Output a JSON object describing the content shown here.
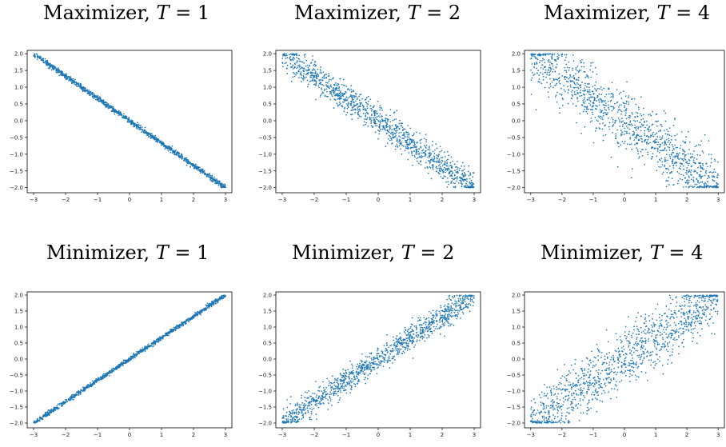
{
  "style": {
    "point_color": "#1f77b4",
    "axis_color": "#000000",
    "background": "#ffffff"
  },
  "chart_data": [
    {
      "type": "scatter",
      "title": {
        "prefix": "Maximizer, ",
        "var": "T",
        "eq": " = 1"
      },
      "relation": "negative",
      "noise_level": 0.04,
      "n_points": 1200,
      "xlim": [
        -3.2,
        3.2
      ],
      "ylim": [
        -2.15,
        2.1
      ],
      "xticks": [
        -3,
        -2,
        -1,
        0,
        1,
        2,
        3
      ],
      "xtick_labels": [
        "−3",
        "−2",
        "−1",
        "0",
        "1",
        "2",
        "3"
      ],
      "yticks": [
        -2.0,
        -1.5,
        -1.0,
        -0.5,
        0.0,
        0.5,
        1.0,
        1.5,
        2.0
      ],
      "ytick_labels": [
        "−2.0",
        "−1.5",
        "−1.0",
        "−0.5",
        "0.0",
        "0.5",
        "1.0",
        "1.5",
        "2.0"
      ],
      "grid": false
    },
    {
      "type": "scatter",
      "title": {
        "prefix": "Maximizer, ",
        "var": "T",
        "eq": " = 2"
      },
      "relation": "negative",
      "noise_level": 0.22,
      "n_points": 1200,
      "xlim": [
        -3.2,
        3.2
      ],
      "ylim": [
        -2.15,
        2.1
      ],
      "xticks": [
        -3,
        -2,
        -1,
        0,
        1,
        2,
        3
      ],
      "xtick_labels": [
        "−3",
        "−2",
        "−1",
        "0",
        "1",
        "2",
        "3"
      ],
      "yticks": [
        -2.0,
        -1.5,
        -1.0,
        -0.5,
        0.0,
        0.5,
        1.0,
        1.5,
        2.0
      ],
      "ytick_labels": [
        "−2.0",
        "−1.5",
        "−1.0",
        "−0.5",
        "0.0",
        "0.5",
        "1.0",
        "1.5",
        "2.0"
      ],
      "grid": false
    },
    {
      "type": "scatter",
      "title": {
        "prefix": "Maximizer, ",
        "var": "T",
        "eq": " = 4"
      },
      "relation": "negative",
      "noise_level": 0.45,
      "n_points": 1200,
      "xlim": [
        -3.2,
        3.2
      ],
      "ylim": [
        -2.15,
        2.1
      ],
      "xticks": [
        -3,
        -2,
        -1,
        0,
        1,
        2,
        3
      ],
      "xtick_labels": [
        "−3",
        "−2",
        "−1",
        "0",
        "1",
        "2",
        "3"
      ],
      "yticks": [
        -2.0,
        -1.5,
        -1.0,
        -0.5,
        0.0,
        0.5,
        1.0,
        1.5,
        2.0
      ],
      "ytick_labels": [
        "−2.0",
        "−1.5",
        "−1.0",
        "−0.5",
        "0.0",
        "0.5",
        "1.0",
        "1.5",
        "2.0"
      ],
      "grid": false
    },
    {
      "type": "scatter",
      "title": {
        "prefix": "Minimizer, ",
        "var": "T",
        "eq": " = 1"
      },
      "relation": "positive",
      "noise_level": 0.035,
      "n_points": 1200,
      "xlim": [
        -3.2,
        3.2
      ],
      "ylim": [
        -2.15,
        2.1
      ],
      "xticks": [
        -3,
        -2,
        -1,
        0,
        1,
        2,
        3
      ],
      "xtick_labels": [
        "−3",
        "−2",
        "−1",
        "0",
        "1",
        "2",
        "3"
      ],
      "yticks": [
        -2.0,
        -1.5,
        -1.0,
        -0.5,
        0.0,
        0.5,
        1.0,
        1.5,
        2.0
      ],
      "ytick_labels": [
        "−2.0",
        "−1.5",
        "−1.0",
        "−0.5",
        "0.0",
        "0.5",
        "1.0",
        "1.5",
        "2.0"
      ],
      "grid": false
    },
    {
      "type": "scatter",
      "title": {
        "prefix": "Minimizer, ",
        "var": "T",
        "eq": " = 2"
      },
      "relation": "positive",
      "noise_level": 0.2,
      "n_points": 1200,
      "xlim": [
        -3.2,
        3.2
      ],
      "ylim": [
        -2.15,
        2.1
      ],
      "xticks": [
        -3,
        -2,
        -1,
        0,
        1,
        2,
        3
      ],
      "xtick_labels": [
        "−3",
        "−2",
        "−1",
        "0",
        "1",
        "2",
        "3"
      ],
      "yticks": [
        -2.0,
        -1.5,
        -1.0,
        -0.5,
        0.0,
        0.5,
        1.0,
        1.5,
        2.0
      ],
      "ytick_labels": [
        "−2.0",
        "−1.5",
        "−1.0",
        "−0.5",
        "0.0",
        "0.5",
        "1.0",
        "1.5",
        "2.0"
      ],
      "grid": false
    },
    {
      "type": "scatter",
      "title": {
        "prefix": "Minimizer, ",
        "var": "T",
        "eq": " = 4"
      },
      "relation": "positive",
      "noise_level": 0.45,
      "n_points": 1200,
      "xlim": [
        -3.2,
        3.2
      ],
      "ylim": [
        -2.15,
        2.1
      ],
      "xticks": [
        -3,
        -2,
        -1,
        0,
        1,
        2,
        3
      ],
      "xtick_labels": [
        "−3",
        "−2",
        "−1",
        "0",
        "1",
        "2",
        "3"
      ],
      "yticks": [
        -2.0,
        -1.5,
        -1.0,
        -0.5,
        0.0,
        0.5,
        1.0,
        1.5,
        2.0
      ],
      "ytick_labels": [
        "−2.0",
        "−1.5",
        "−1.0",
        "−0.5",
        "0.0",
        "0.5",
        "1.0",
        "1.5",
        "2.0"
      ],
      "grid": false
    }
  ]
}
